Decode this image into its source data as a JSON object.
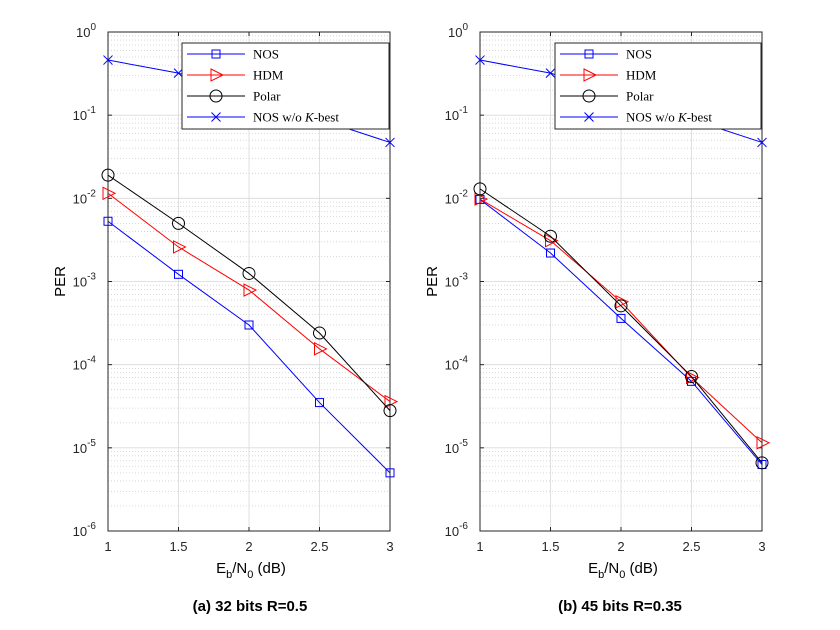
{
  "chart_data": [
    {
      "type": "line",
      "caption": "(a) 32 bits R=0.5",
      "ylabel": "PER",
      "xlabel": {
        "main": "E",
        "sub1": "b",
        "mid": "/N",
        "sub2": "0",
        "unit": " (dB)"
      },
      "xlim": [
        1,
        3
      ],
      "ylim": [
        1e-06,
        1
      ],
      "yscale": "log",
      "grid": true,
      "legend_position": "top-right",
      "x_ticks": [
        "1",
        "1.5",
        "2",
        "2.5",
        "3"
      ],
      "y_ticks": [
        "10^0",
        "10^-1",
        "10^-2",
        "10^-3",
        "10^-4",
        "10^-5",
        "10^-6"
      ],
      "series": [
        {
          "name": "NOS",
          "color": "#0000ff",
          "marker": "square",
          "x": [
            1,
            1.5,
            2,
            2.5,
            3
          ],
          "values": [
            0.0053,
            0.00122,
            0.0003,
            3.5e-05,
            5e-06
          ]
        },
        {
          "name": "HDM",
          "color": "#ff0000",
          "marker": "triangle-right",
          "x": [
            1,
            1.5,
            2,
            2.5,
            3
          ],
          "values": [
            0.0115,
            0.0026,
            0.00079,
            0.000155,
            3.6e-05
          ]
        },
        {
          "name": "Polar",
          "color": "#000000",
          "marker": "circle",
          "x": [
            1,
            1.5,
            2,
            2.5,
            3
          ],
          "values": [
            0.019,
            0.005,
            0.00125,
            0.00024,
            2.8e-05
          ]
        },
        {
          "name": "NOS w/o K-best",
          "color": "#0000ff",
          "marker": "x",
          "x": [
            1,
            1.5,
            3
          ],
          "values": [
            0.46,
            0.32,
            0.047
          ]
        }
      ]
    },
    {
      "type": "line",
      "caption": "(b) 45 bits R=0.35",
      "ylabel": "PER",
      "xlabel": {
        "main": "E",
        "sub1": "b",
        "mid": "/N",
        "sub2": "0",
        "unit": " (dB)"
      },
      "xlim": [
        1,
        3
      ],
      "ylim": [
        1e-06,
        1
      ],
      "yscale": "log",
      "grid": true,
      "legend_position": "top-right",
      "x_ticks": [
        "1",
        "1.5",
        "2",
        "2.5",
        "3"
      ],
      "y_ticks": [
        "10^0",
        "10^-1",
        "10^-2",
        "10^-3",
        "10^-4",
        "10^-5",
        "10^-6"
      ],
      "series": [
        {
          "name": "NOS",
          "color": "#0000ff",
          "marker": "square",
          "x": [
            1,
            1.5,
            2,
            2.5,
            3
          ],
          "values": [
            0.0097,
            0.0022,
            0.00036,
            6.3e-05,
            6.3e-06
          ]
        },
        {
          "name": "HDM",
          "color": "#ff0000",
          "marker": "triangle-right",
          "x": [
            1,
            1.5,
            2,
            2.5,
            3
          ],
          "values": [
            0.0098,
            0.0031,
            0.00057,
            7e-05,
            1.15e-05
          ]
        },
        {
          "name": "Polar",
          "color": "#000000",
          "marker": "circle",
          "x": [
            1,
            1.5,
            2,
            2.5,
            3
          ],
          "values": [
            0.013,
            0.0035,
            0.00051,
            7.2e-05,
            6.6e-06
          ]
        },
        {
          "name": "NOS w/o K-best",
          "color": "#0000ff",
          "marker": "x",
          "x": [
            1,
            1.5,
            3
          ],
          "values": [
            0.46,
            0.32,
            0.047
          ]
        }
      ]
    }
  ]
}
